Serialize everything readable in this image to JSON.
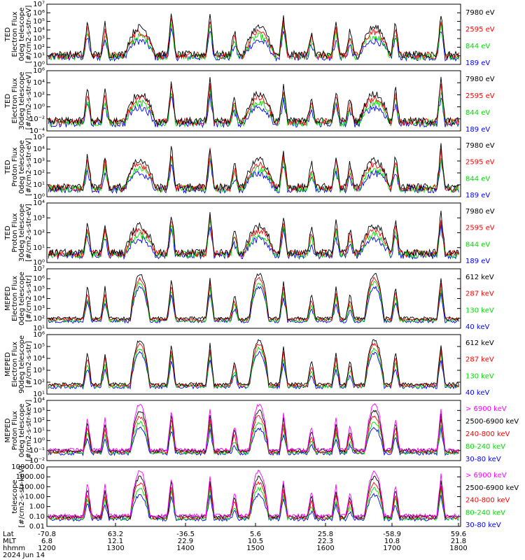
{
  "chart_data": {
    "type": "line",
    "date_label": "2024 Jun 14",
    "x_rows": [
      {
        "label": "Lat",
        "values": [
          "-70.8",
          "63.2",
          "-36.5",
          "5.6",
          "25.8",
          "-58.9",
          "59.6"
        ]
      },
      {
        "label": "MLT",
        "values": [
          "6.8",
          "12.1",
          "22.9",
          "10.5",
          "22.3",
          "10.8",
          "21.8"
        ]
      },
      {
        "label": "hhmm",
        "values": [
          "1200",
          "1300",
          "1400",
          "1500",
          "1600",
          "1700",
          "1800"
        ]
      }
    ],
    "panels": [
      {
        "ylabel": [
          "TED",
          "Electron Flux",
          "0deg telescope",
          "[#/cm2-s-str-eV]"
        ],
        "y_log": true,
        "ylim_exp": [
          0,
          7
        ],
        "ytick_labels": [
          "10⁰",
          "10¹",
          "10²",
          "10³",
          "10⁴",
          "10⁵",
          "10⁶",
          "10⁷"
        ],
        "series": [
          {
            "name": "7980 eV",
            "color": "#000000"
          },
          {
            "name": "2595 eV",
            "color": "#ff0000"
          },
          {
            "name": "844 eV",
            "color": "#00dd00"
          },
          {
            "name": "189 eV",
            "color": "#0000ff"
          }
        ]
      },
      {
        "ylabel": [
          "TED",
          "Electron Flux",
          "30deg telescope",
          "[#/cm2-s-str-eV]"
        ],
        "y_log": true,
        "ylim_exp": [
          -4,
          6
        ],
        "ytick_labels": [
          "10⁻⁴",
          "10⁻²",
          "10⁰",
          "10²",
          "10⁴",
          "10⁶"
        ],
        "series": [
          {
            "name": "7980 eV",
            "color": "#000000"
          },
          {
            "name": "2595 eV",
            "color": "#ff0000"
          },
          {
            "name": "844 eV",
            "color": "#00dd00"
          },
          {
            "name": "189 eV",
            "color": "#0000ff"
          }
        ]
      },
      {
        "ylabel": [
          "TED",
          "Proton Flux",
          "0deg telescope",
          "[#/cm2-s-str-eV]"
        ],
        "y_log": true,
        "ylim_exp": [
          0,
          5
        ],
        "ytick_labels": [
          "10⁰",
          "10¹",
          "10²",
          "10³",
          "10⁴",
          "10⁵"
        ],
        "series": [
          {
            "name": "7980 eV",
            "color": "#000000"
          },
          {
            "name": "2595 eV",
            "color": "#ff0000"
          },
          {
            "name": "844 eV",
            "color": "#00dd00"
          },
          {
            "name": "189 eV",
            "color": "#0000ff"
          }
        ]
      },
      {
        "ylabel": [
          "TED",
          "Proton Flux",
          "30deg telescope",
          "[#/cm2-s-str-eV]"
        ],
        "y_log": true,
        "ylim_exp": [
          0,
          4
        ],
        "ytick_labels": [
          "10⁰",
          "10¹",
          "10²",
          "10³",
          "10⁴"
        ],
        "series": [
          {
            "name": "7980 eV",
            "color": "#000000"
          },
          {
            "name": "2595 eV",
            "color": "#ff0000"
          },
          {
            "name": "844 eV",
            "color": "#00dd00"
          },
          {
            "name": "189 eV",
            "color": "#0000ff"
          }
        ]
      },
      {
        "ylabel": [
          "MEPED",
          "Electron Flux",
          "0deg telescope",
          "[#/cm2-s-str]"
        ],
        "y_log": true,
        "ylim_exp": [
          1,
          7
        ],
        "ytick_labels": [
          "10¹",
          "10²",
          "10³",
          "10⁴",
          "10⁵",
          "10⁶",
          "10⁷"
        ],
        "series": [
          {
            "name": "612 keV",
            "color": "#000000"
          },
          {
            "name": "287 keV",
            "color": "#ff0000"
          },
          {
            "name": "130 keV",
            "color": "#00dd00"
          },
          {
            "name": "40 keV",
            "color": "#0000ff"
          }
        ]
      },
      {
        "ylabel": [
          "MEPED",
          "Electron Flux",
          "90deg telescope",
          "[#/cm2-s-str]"
        ],
        "y_log": true,
        "ylim_exp": [
          1,
          6
        ],
        "ytick_labels": [
          "10¹",
          "10²",
          "10³",
          "10⁴",
          "10⁵",
          "10⁶"
        ],
        "series": [
          {
            "name": "612 keV",
            "color": "#000000"
          },
          {
            "name": "287 keV",
            "color": "#ff0000"
          },
          {
            "name": "130 keV",
            "color": "#00dd00"
          },
          {
            "name": "40 keV",
            "color": "#0000ff"
          }
        ]
      },
      {
        "ylabel": [
          "MEPED",
          "Proton Flux",
          "0deg telescope",
          "[#/cm2-s-str-keV]"
        ],
        "y_log": true,
        "ylim_exp": [
          -2,
          4
        ],
        "ytick_labels": [
          "10⁻²",
          "10⁻¹",
          "10⁰",
          "10¹",
          "10²",
          "10³",
          "10⁴"
        ],
        "series": [
          {
            "name": "> 6900 keV",
            "color": "#ff00ff"
          },
          {
            "name": "2500-6900 keV",
            "color": "#000000"
          },
          {
            "name": "240-800 keV",
            "color": "#ff0000"
          },
          {
            "name": "80-240 keV",
            "color": "#00dd00"
          },
          {
            "name": "30-80 keV",
            "color": "#0000ff"
          }
        ]
      },
      {
        "ylabel": [
          "telescope",
          "[#/cm2-s-str-keV]"
        ],
        "y_log": true,
        "ylim_exp": [
          -2,
          4
        ],
        "ytick_labels": [
          "0.01",
          "0.10",
          "1.00",
          "10.00",
          "100.00",
          "1000.00",
          "10000.00"
        ],
        "series": [
          {
            "name": "> 6900 keV",
            "color": "#ff00ff"
          },
          {
            "name": "2500-6900 keV",
            "color": "#000000"
          },
          {
            "name": "240-800 keV",
            "color": "#ff0000"
          },
          {
            "name": "80-240 keV",
            "color": "#00dd00"
          },
          {
            "name": "30-80 keV",
            "color": "#0000ff"
          }
        ]
      }
    ]
  }
}
